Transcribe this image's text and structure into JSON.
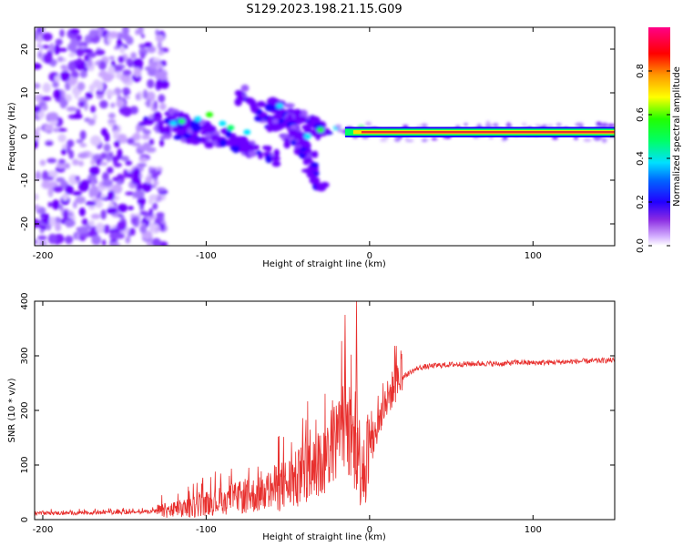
{
  "figure_title": "S129.2023.198.21.15.G09",
  "colors": {
    "snr_line": "#e8302e",
    "spectrum_core": "#e8302e",
    "speckle": "#7a00ff"
  },
  "chart_data": [
    {
      "type": "heatmap",
      "title": "S129.2023.198.21.15.G09",
      "xlabel": "Height of straight line (km)",
      "ylabel": "Frequency (Hz)",
      "xlim": [
        -205,
        150
      ],
      "ylim": [
        -25,
        25
      ],
      "xticks": [
        -200,
        -100,
        0,
        100
      ],
      "yticks": [
        -20,
        -10,
        0,
        10,
        20
      ],
      "colorbar": {
        "label": "Normalized spectral amplitude",
        "range": [
          0,
          1
        ],
        "ticks": [
          "0.0",
          "0.2",
          "0.4",
          "0.6",
          "0.8"
        ],
        "colormap": "rainbow"
      },
      "features": {
        "noise_region_x": [
          -205,
          -125
        ],
        "transition_region_x": [
          -140,
          -15
        ],
        "stable_line_x": [
          -15,
          150
        ],
        "stable_line_frequency_hz": 1
      }
    },
    {
      "type": "line",
      "title": "",
      "xlabel": "Height of straight line (km)",
      "ylabel": "SNR (10 * v/v)",
      "xlim": [
        -205,
        150
      ],
      "ylim": [
        0,
        400
      ],
      "xticks": [
        -200,
        -100,
        0,
        100
      ],
      "yticks": [
        0,
        100,
        200,
        300,
        400
      ],
      "series": [
        {
          "name": "SNR",
          "x": [
            -205,
            -180,
            -160,
            -140,
            -120,
            -110,
            -100,
            -90,
            -80,
            -70,
            -60,
            -50,
            -40,
            -30,
            -20,
            -15,
            -12,
            -8,
            -6,
            -5,
            0,
            5,
            10,
            15,
            20,
            25,
            30,
            40,
            50,
            60,
            70,
            80,
            90,
            100,
            110,
            120,
            130,
            140,
            150
          ],
          "values": [
            12,
            12,
            13,
            14,
            17,
            22,
            30,
            35,
            40,
            45,
            55,
            65,
            78,
            100,
            150,
            170,
            150,
            130,
            110,
            100,
            125,
            170,
            215,
            245,
            260,
            270,
            278,
            282,
            284,
            285,
            286,
            285,
            288,
            287,
            288,
            289,
            290,
            291,
            292
          ]
        }
      ],
      "spikes": [
        {
          "x": -15,
          "value": 375
        },
        {
          "x": -8,
          "value": 400
        }
      ]
    }
  ]
}
